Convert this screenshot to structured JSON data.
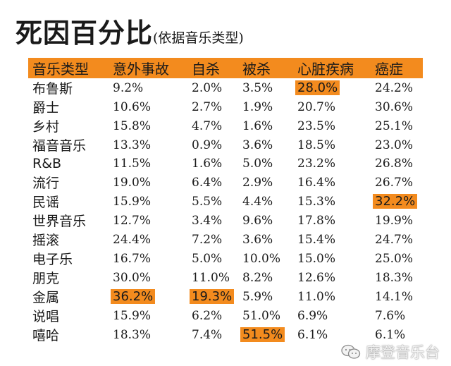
{
  "title": "死因百分比",
  "subtitle": "(依据音乐类型)",
  "colors": {
    "highlight": "#f38b1e",
    "header_bg": "#f38b1e"
  },
  "watermark": {
    "text": "摩登音乐台",
    "icon": "wechat-bubbles-icon"
  },
  "chart_data": {
    "type": "table",
    "columns": [
      "音乐类型",
      "意外事故",
      "自杀",
      "被杀",
      "心脏疾病",
      "癌症"
    ],
    "rows": [
      {
        "genre": "布鲁斯",
        "values": [
          "9.2%",
          "2.0%",
          "3.5%",
          "28.0%",
          "24.2%"
        ],
        "highlight": [
          3
        ]
      },
      {
        "genre": "爵士",
        "values": [
          "10.6%",
          "2.7%",
          "1.9%",
          "20.7%",
          "30.6%"
        ],
        "highlight": []
      },
      {
        "genre": "乡村",
        "values": [
          "15.8%",
          "4.7%",
          "1.6%",
          "23.5%",
          "25.1%"
        ],
        "highlight": []
      },
      {
        "genre": "福音音乐",
        "values": [
          "13.3%",
          "0.9%",
          "3.6%",
          "18.5%",
          "23.0%"
        ],
        "highlight": []
      },
      {
        "genre": "R&B",
        "values": [
          "11.5%",
          "1.6%",
          "5.0%",
          "23.2%",
          "26.8%"
        ],
        "highlight": []
      },
      {
        "genre": "流行",
        "values": [
          "19.0%",
          "6.4%",
          "2.9%",
          "16.4%",
          "26.7%"
        ],
        "highlight": []
      },
      {
        "genre": "民谣",
        "values": [
          "15.9%",
          "5.5%",
          "4.4%",
          "15.3%",
          "32.2%"
        ],
        "highlight": [
          4
        ]
      },
      {
        "genre": "世界音乐",
        "values": [
          "12.7%",
          "3.4%",
          "9.6%",
          "17.8%",
          "19.9%"
        ],
        "highlight": []
      },
      {
        "genre": "摇滚",
        "values": [
          "24.4%",
          "7.2%",
          "3.6%",
          "15.4%",
          "24.7%"
        ],
        "highlight": []
      },
      {
        "genre": "电子乐",
        "values": [
          "16.7%",
          "5.0%",
          "10.0%",
          "15.0%",
          "25.0%"
        ],
        "highlight": []
      },
      {
        "genre": "朋克",
        "values": [
          "30.0%",
          "11.0%",
          "8.2%",
          "12.6%",
          "18.3%"
        ],
        "highlight": []
      },
      {
        "genre": "金属",
        "values": [
          "36.2%",
          "19.3%",
          "5.9%",
          "11.0%",
          "14.1%"
        ],
        "highlight": [
          0,
          1
        ]
      },
      {
        "genre": "说唱",
        "values": [
          "15.9%",
          "6.2%",
          "51.0%",
          "6.9%",
          "7.6%"
        ],
        "highlight": []
      },
      {
        "genre": "嘻哈",
        "values": [
          "18.3%",
          "7.4%",
          "51.5%",
          "6.1%",
          "6.1%"
        ],
        "highlight": [
          2
        ]
      }
    ]
  }
}
